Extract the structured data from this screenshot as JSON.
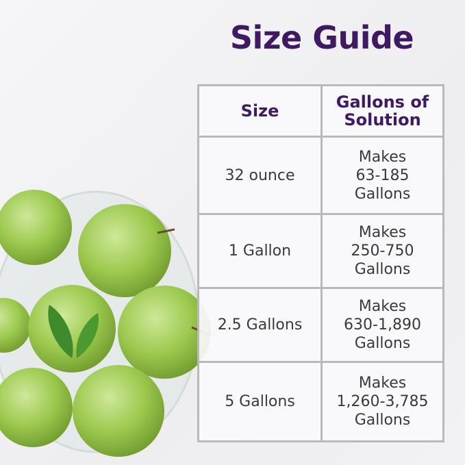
{
  "title": "Size Guide",
  "table": {
    "headers": [
      "Size",
      "Gallons of\nSolution"
    ],
    "rows": [
      {
        "size": "32 ounce",
        "yield": "Makes\n63-185\nGallons"
      },
      {
        "size": "1 Gallon",
        "yield": "Makes\n250-750\nGallons"
      },
      {
        "size": "2.5 Gallons",
        "yield": "Makes\n630-1,890\nGallons"
      },
      {
        "size": "5 Gallons",
        "yield": "Makes\n1,260-3,785\nGallons"
      }
    ]
  },
  "colors": {
    "title": "#3f1a63",
    "apple": "#9cc94e",
    "border": "#b9b9bc"
  },
  "image": {
    "subject": "apples-in-glass-bowl-icon",
    "logo": "leaf-icon"
  }
}
